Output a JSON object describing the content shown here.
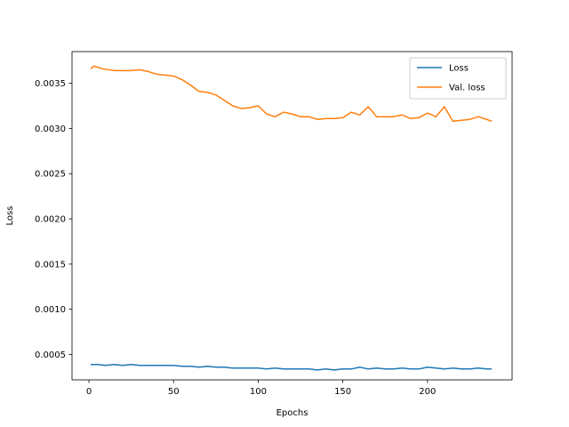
{
  "chart_data": {
    "type": "line",
    "title": "",
    "xlabel": "Epochs",
    "ylabel": "Loss",
    "xlim": [
      -10,
      250
    ],
    "ylim": [
      0.00022,
      0.00385
    ],
    "xticks": [
      0,
      50,
      100,
      150,
      200
    ],
    "xtick_labels": [
      "0",
      "50",
      "100",
      "150",
      "200"
    ],
    "yticks": [
      0.0005,
      0.001,
      0.0015,
      0.002,
      0.0025,
      0.003,
      0.0035
    ],
    "ytick_labels": [
      "0.0005",
      "0.0010",
      "0.0015",
      "0.0020",
      "0.0025",
      "0.0030",
      "0.0035"
    ],
    "grid": false,
    "legend_position": "upper right",
    "series": [
      {
        "name": "Loss",
        "color": "#1f77b4",
        "x": [
          1,
          5,
          10,
          15,
          20,
          25,
          30,
          35,
          40,
          45,
          50,
          55,
          60,
          65,
          70,
          75,
          80,
          85,
          90,
          95,
          100,
          105,
          110,
          115,
          120,
          125,
          130,
          135,
          140,
          145,
          150,
          155,
          160,
          165,
          170,
          175,
          180,
          185,
          190,
          195,
          200,
          205,
          210,
          215,
          220,
          225,
          230,
          235,
          238
        ],
        "y": [
          0.00039,
          0.00039,
          0.00038,
          0.00039,
          0.00038,
          0.00039,
          0.00038,
          0.00038,
          0.00038,
          0.00038,
          0.00038,
          0.00037,
          0.00037,
          0.00036,
          0.00037,
          0.00036,
          0.00036,
          0.00035,
          0.00035,
          0.00035,
          0.00035,
          0.00034,
          0.00035,
          0.00034,
          0.00034,
          0.00034,
          0.00034,
          0.00033,
          0.00034,
          0.00033,
          0.00034,
          0.00034,
          0.00036,
          0.00034,
          0.00035,
          0.00034,
          0.00034,
          0.00035,
          0.00034,
          0.00034,
          0.00036,
          0.00035,
          0.00034,
          0.00035,
          0.00034,
          0.00034,
          0.00035,
          0.00034,
          0.00034
        ]
      },
      {
        "name": "Val. loss",
        "color": "#ff7f0e",
        "x": [
          1,
          3,
          8,
          15,
          20,
          25,
          30,
          35,
          40,
          45,
          50,
          55,
          60,
          65,
          70,
          75,
          80,
          85,
          90,
          95,
          100,
          105,
          110,
          115,
          120,
          125,
          130,
          135,
          140,
          145,
          150,
          155,
          160,
          165,
          170,
          175,
          180,
          185,
          190,
          195,
          200,
          205,
          210,
          215,
          220,
          225,
          230,
          235,
          238
        ],
        "y": [
          0.00366,
          0.00369,
          0.00366,
          0.00364,
          0.00364,
          0.00364,
          0.00365,
          0.00363,
          0.0036,
          0.00359,
          0.00358,
          0.00354,
          0.00348,
          0.00341,
          0.0034,
          0.00337,
          0.00331,
          0.00325,
          0.00322,
          0.00323,
          0.00325,
          0.00316,
          0.00313,
          0.00318,
          0.00316,
          0.00313,
          0.00313,
          0.0031,
          0.00311,
          0.00311,
          0.00312,
          0.00318,
          0.00315,
          0.00324,
          0.00313,
          0.00313,
          0.00313,
          0.00315,
          0.00311,
          0.00312,
          0.00317,
          0.00313,
          0.00324,
          0.00308,
          0.00309,
          0.0031,
          0.00313,
          0.0031,
          0.00308
        ]
      }
    ]
  }
}
